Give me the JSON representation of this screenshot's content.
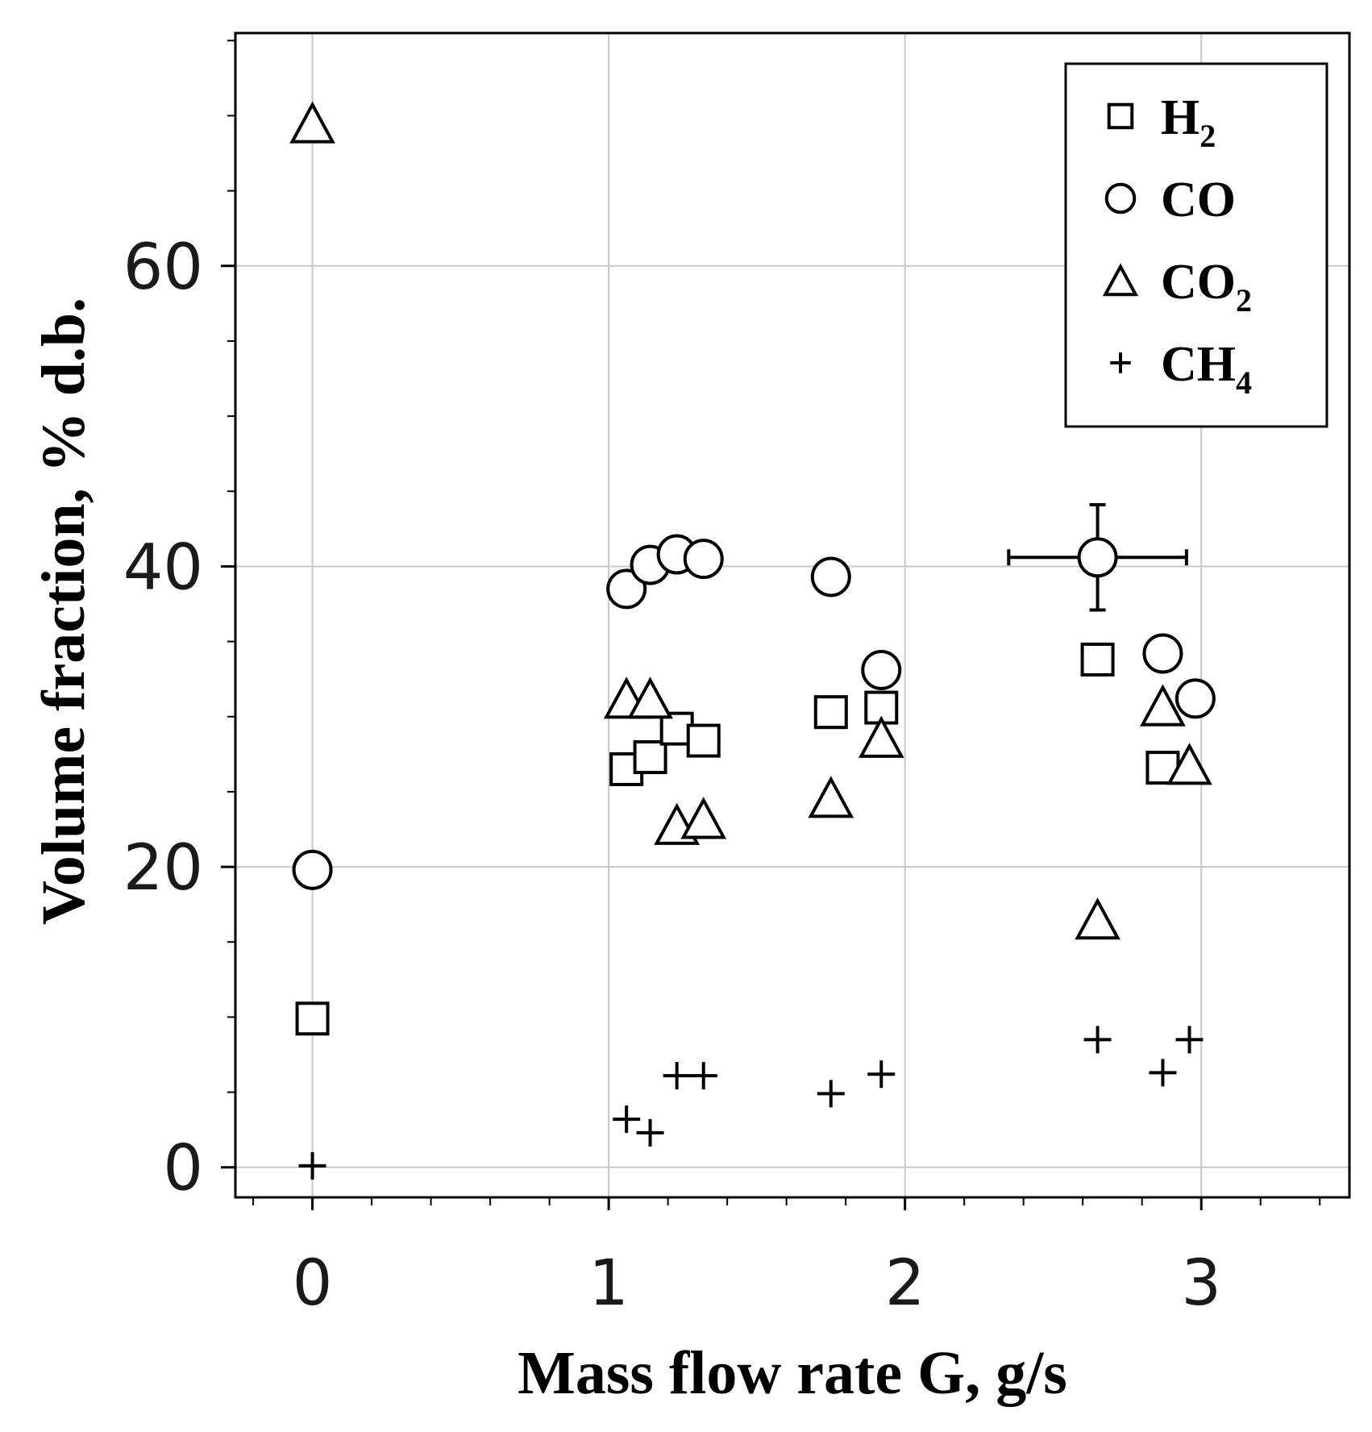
{
  "chart_data": {
    "type": "scatter",
    "title": "",
    "xlabel": "Mass flow rate G, g/s",
    "ylabel": "Volume fraction, % d.b.",
    "xlim": [
      -0.26,
      3.5
    ],
    "ylim": [
      -2,
      75.5
    ],
    "x_ticks": [
      0,
      1,
      2,
      3
    ],
    "y_ticks": [
      0,
      20,
      40,
      60
    ],
    "x_minor_step": 0.2,
    "y_minor_step": 5,
    "grid": true,
    "legend_position": "top-right",
    "series": [
      {
        "name": "H2",
        "label_main": "H",
        "label_sub": "2",
        "marker": "square",
        "points": [
          {
            "x": 0.0,
            "y": 9.9
          },
          {
            "x": 1.06,
            "y": 26.5
          },
          {
            "x": 1.14,
            "y": 27.3
          },
          {
            "x": 1.23,
            "y": 29.2
          },
          {
            "x": 1.32,
            "y": 28.4
          },
          {
            "x": 1.75,
            "y": 30.3
          },
          {
            "x": 1.92,
            "y": 30.6
          },
          {
            "x": 2.65,
            "y": 33.8
          },
          {
            "x": 2.87,
            "y": 26.6
          }
        ]
      },
      {
        "name": "CO",
        "label_main": "CO",
        "label_sub": "",
        "marker": "circle",
        "points": [
          {
            "x": 0.0,
            "y": 19.8
          },
          {
            "x": 1.06,
            "y": 38.5
          },
          {
            "x": 1.14,
            "y": 40.1
          },
          {
            "x": 1.23,
            "y": 40.8
          },
          {
            "x": 1.32,
            "y": 40.5
          },
          {
            "x": 1.75,
            "y": 39.3
          },
          {
            "x": 1.92,
            "y": 33.1
          },
          {
            "x": 2.65,
            "y": 40.6,
            "xerr": 0.3,
            "yerr": 3.5
          },
          {
            "x": 2.87,
            "y": 34.2
          },
          {
            "x": 2.98,
            "y": 31.2
          }
        ]
      },
      {
        "name": "CO2",
        "label_main": "CO",
        "label_sub": "2",
        "marker": "triangle",
        "points": [
          {
            "x": 0.0,
            "y": 69.5
          },
          {
            "x": 1.06,
            "y": 31.2
          },
          {
            "x": 1.14,
            "y": 31.2
          },
          {
            "x": 1.23,
            "y": 22.8
          },
          {
            "x": 1.32,
            "y": 23.2
          },
          {
            "x": 1.75,
            "y": 24.6
          },
          {
            "x": 1.92,
            "y": 28.6
          },
          {
            "x": 2.65,
            "y": 16.5
          },
          {
            "x": 2.87,
            "y": 30.7
          },
          {
            "x": 2.96,
            "y": 26.8
          }
        ]
      },
      {
        "name": "CH4",
        "label_main": "CH",
        "label_sub": "4",
        "marker": "plus",
        "points": [
          {
            "x": 0.0,
            "y": 0.1
          },
          {
            "x": 1.06,
            "y": 3.2
          },
          {
            "x": 1.14,
            "y": 2.3
          },
          {
            "x": 1.23,
            "y": 6.1
          },
          {
            "x": 1.32,
            "y": 6.1
          },
          {
            "x": 1.75,
            "y": 4.9
          },
          {
            "x": 1.92,
            "y": 6.2
          },
          {
            "x": 2.65,
            "y": 8.5
          },
          {
            "x": 2.87,
            "y": 6.3
          },
          {
            "x": 2.96,
            "y": 8.5
          }
        ]
      }
    ]
  }
}
